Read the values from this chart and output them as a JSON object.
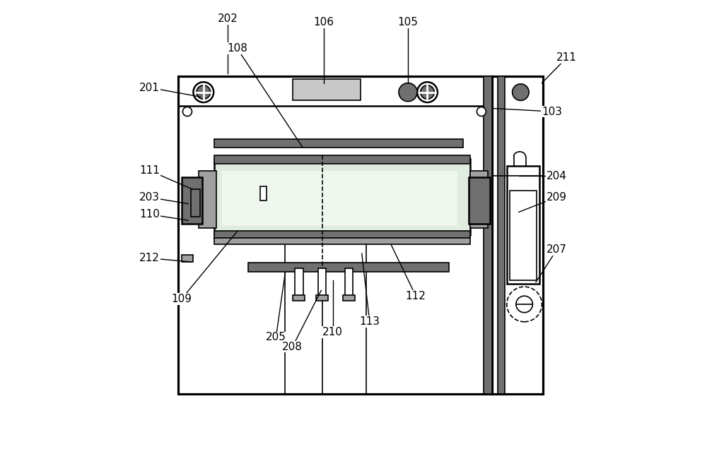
{
  "bg": "#ffffff",
  "lc": "#000000",
  "gd": "#707070",
  "gm": "#a0a0a0",
  "gl": "#c8c8c8",
  "tube_fill": "#e0ece0",
  "tube_light": "#eef6ee",
  "lw": 1.8,
  "lt": 1.2,
  "fs": 11,
  "annotations": {
    "202": [
      0.228,
      0.96,
      0.228,
      0.84
    ],
    "108": [
      0.248,
      0.895,
      0.39,
      0.68
    ],
    "106": [
      0.435,
      0.952,
      0.435,
      0.82
    ],
    "105": [
      0.618,
      0.952,
      0.618,
      0.82
    ],
    "211": [
      0.962,
      0.875,
      0.908,
      0.82
    ],
    "201": [
      0.058,
      0.81,
      0.168,
      0.79
    ],
    "103": [
      0.93,
      0.758,
      0.8,
      0.765
    ],
    "111": [
      0.058,
      0.63,
      0.15,
      0.59
    ],
    "203": [
      0.058,
      0.572,
      0.142,
      0.558
    ],
    "110": [
      0.058,
      0.535,
      0.142,
      0.522
    ],
    "204": [
      0.94,
      0.618,
      0.858,
      0.618
    ],
    "209": [
      0.94,
      0.572,
      0.858,
      0.54
    ],
    "207": [
      0.94,
      0.458,
      0.895,
      0.388
    ],
    "212": [
      0.058,
      0.44,
      0.148,
      0.432
    ],
    "109": [
      0.128,
      0.352,
      0.248,
      0.498
    ],
    "205": [
      0.332,
      0.268,
      0.352,
      0.408
    ],
    "208": [
      0.368,
      0.248,
      0.43,
      0.37
    ],
    "210": [
      0.455,
      0.28,
      0.455,
      0.392
    ],
    "113": [
      0.535,
      0.302,
      0.518,
      0.45
    ],
    "112": [
      0.635,
      0.358,
      0.582,
      0.468
    ]
  }
}
